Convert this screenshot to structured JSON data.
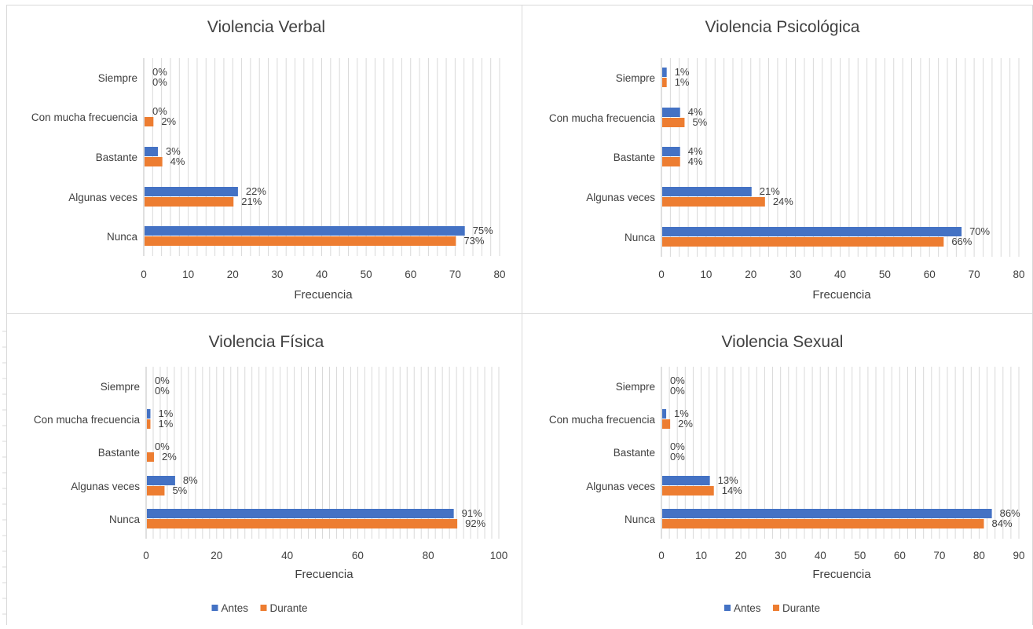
{
  "colors": {
    "antes": "#4472C4",
    "durante": "#ED7D31",
    "grid": "#d9d9d9",
    "text": "#404040"
  },
  "chart_data": [
    {
      "type": "bar",
      "orientation": "horizontal",
      "title": "Violencia Verbal",
      "xlabel": "Frecuencia",
      "xlim": [
        0,
        80
      ],
      "xticks": [
        0,
        10,
        20,
        30,
        40,
        50,
        60,
        70,
        80
      ],
      "categories": [
        "Siempre",
        "Con mucha frecuencia",
        "Bastante",
        "Algunas veces",
        "Nunca"
      ],
      "series": [
        {
          "name": "Antes",
          "values": [
            0,
            0,
            3,
            21,
            72
          ],
          "labels": [
            "0%",
            "0%",
            "3%",
            "22%",
            "75%"
          ]
        },
        {
          "name": "Durante",
          "values": [
            0,
            2,
            4,
            20,
            70
          ],
          "labels": [
            "0%",
            "2%",
            "4%",
            "21%",
            "73%"
          ]
        }
      ],
      "grid": true
    },
    {
      "type": "bar",
      "orientation": "horizontal",
      "title": "Violencia Psicológica",
      "xlabel": "Frecuencia",
      "xlim": [
        0,
        80
      ],
      "xticks": [
        0,
        10,
        20,
        30,
        40,
        50,
        60,
        70,
        80
      ],
      "categories": [
        "Siempre",
        "Con mucha frecuencia",
        "Bastante",
        "Algunas veces",
        "Nunca"
      ],
      "series": [
        {
          "name": "Antes",
          "values": [
            1,
            4,
            4,
            20,
            67
          ],
          "labels": [
            "1%",
            "4%",
            "4%",
            "21%",
            "70%"
          ]
        },
        {
          "name": "Durante",
          "values": [
            1,
            5,
            4,
            23,
            63
          ],
          "labels": [
            "1%",
            "5%",
            "4%",
            "24%",
            "66%"
          ]
        }
      ],
      "grid": true
    },
    {
      "type": "bar",
      "orientation": "horizontal",
      "title": "Violencia Física",
      "xlabel": "Frecuencia",
      "xlim": [
        0,
        100
      ],
      "xticks": [
        0,
        20,
        40,
        60,
        80,
        100
      ],
      "categories": [
        "Siempre",
        "Con mucha frecuencia",
        "Bastante",
        "Algunas veces",
        "Nunca"
      ],
      "series": [
        {
          "name": "Antes",
          "values": [
            0,
            1,
            0,
            8,
            87
          ],
          "labels": [
            "0%",
            "1%",
            "0%",
            "8%",
            "91%"
          ]
        },
        {
          "name": "Durante",
          "values": [
            0,
            1,
            2,
            5,
            88
          ],
          "labels": [
            "0%",
            "1%",
            "2%",
            "5%",
            "92%"
          ]
        }
      ],
      "grid": true,
      "legend": "bottom"
    },
    {
      "type": "bar",
      "orientation": "horizontal",
      "title": "Violencia Sexual",
      "xlabel": "Frecuencia",
      "xlim": [
        0,
        90
      ],
      "xticks": [
        0,
        10,
        20,
        30,
        40,
        50,
        60,
        70,
        80,
        90
      ],
      "categories": [
        "Siempre",
        "Con mucha frecuencia",
        "Bastante",
        "Algunas veces",
        "Nunca"
      ],
      "series": [
        {
          "name": "Antes",
          "values": [
            0,
            1,
            0,
            12,
            83
          ],
          "labels": [
            "0%",
            "1%",
            "0%",
            "13%",
            "86%"
          ]
        },
        {
          "name": "Durante",
          "values": [
            0,
            2,
            0,
            13,
            81
          ],
          "labels": [
            "0%",
            "2%",
            "0%",
            "14%",
            "84%"
          ]
        }
      ],
      "grid": true,
      "legend": "bottom"
    }
  ]
}
